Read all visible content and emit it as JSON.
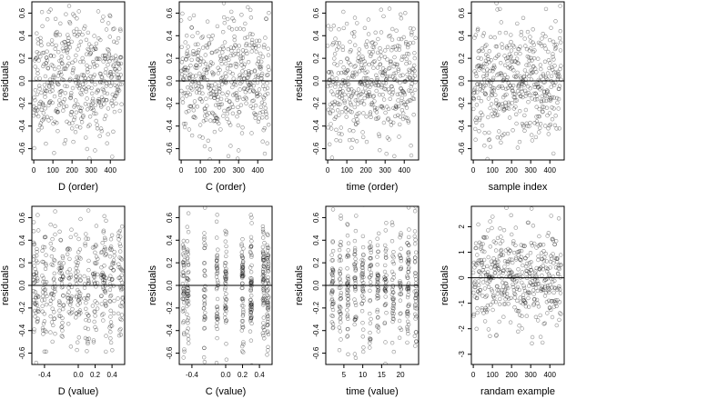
{
  "chart_data": [
    {
      "type": "scatter",
      "xlabel": "D (order)",
      "ylabel": "residuals",
      "xlim": [
        -10,
        475
      ],
      "ylim": [
        -0.7,
        0.7
      ],
      "xticks": [
        {
          "v": 0,
          "label": "0"
        },
        {
          "v": 100,
          "label": "100"
        },
        {
          "v": 200,
          "label": "200"
        },
        {
          "v": 300,
          "label": "300"
        },
        {
          "v": 400,
          "label": "400"
        }
      ],
      "yticks": [
        {
          "v": -0.6,
          "label": "-0.6"
        },
        {
          "v": -0.4,
          "label": "-0.4"
        },
        {
          "v": -0.2,
          "label": "-0.2"
        },
        {
          "v": 0.0,
          "label": "0.0"
        },
        {
          "v": 0.2,
          "label": "0.2"
        },
        {
          "v": 0.4,
          "label": "0.4"
        },
        {
          "v": 0.6,
          "label": "0.6"
        }
      ],
      "hline": 0,
      "gen": {
        "kind": "order",
        "n": 460,
        "sd": 0.27,
        "seed": 11
      }
    },
    {
      "type": "scatter",
      "xlabel": "C (order)",
      "ylabel": "residuals",
      "xlim": [
        -10,
        475
      ],
      "ylim": [
        -0.7,
        0.7
      ],
      "xticks": [
        {
          "v": 0,
          "label": "0"
        },
        {
          "v": 100,
          "label": "100"
        },
        {
          "v": 200,
          "label": "200"
        },
        {
          "v": 300,
          "label": "300"
        },
        {
          "v": 400,
          "label": "400"
        }
      ],
      "yticks": [
        {
          "v": -0.6,
          "label": "-0.6"
        },
        {
          "v": -0.4,
          "label": "-0.4"
        },
        {
          "v": -0.2,
          "label": "-0.2"
        },
        {
          "v": 0.0,
          "label": "0.0"
        },
        {
          "v": 0.2,
          "label": "0.2"
        },
        {
          "v": 0.4,
          "label": "0.4"
        },
        {
          "v": 0.6,
          "label": "0.6"
        }
      ],
      "hline": 0,
      "gen": {
        "kind": "order",
        "n": 460,
        "sd": 0.27,
        "seed": 23
      }
    },
    {
      "type": "scatter",
      "xlabel": "time (order)",
      "ylabel": "residuals",
      "xlim": [
        -10,
        475
      ],
      "ylim": [
        -0.7,
        0.7
      ],
      "xticks": [
        {
          "v": 0,
          "label": "0"
        },
        {
          "v": 100,
          "label": "100"
        },
        {
          "v": 200,
          "label": "200"
        },
        {
          "v": 300,
          "label": "300"
        },
        {
          "v": 400,
          "label": "400"
        }
      ],
      "yticks": [
        {
          "v": -0.6,
          "label": "-0.6"
        },
        {
          "v": -0.4,
          "label": "-0.4"
        },
        {
          "v": -0.2,
          "label": "-0.2"
        },
        {
          "v": 0.0,
          "label": "0.0"
        },
        {
          "v": 0.2,
          "label": "0.2"
        },
        {
          "v": 0.4,
          "label": "0.4"
        },
        {
          "v": 0.6,
          "label": "0.6"
        }
      ],
      "hline": 0,
      "gen": {
        "kind": "order",
        "n": 460,
        "sd": 0.27,
        "seed": 37
      }
    },
    {
      "type": "scatter",
      "xlabel": "sample index",
      "ylabel": "residuals",
      "xlim": [
        -10,
        475
      ],
      "ylim": [
        -0.7,
        0.7
      ],
      "xticks": [
        {
          "v": 0,
          "label": "0"
        },
        {
          "v": 100,
          "label": "100"
        },
        {
          "v": 200,
          "label": "200"
        },
        {
          "v": 300,
          "label": "300"
        },
        {
          "v": 400,
          "label": "400"
        }
      ],
      "yticks": [
        {
          "v": -0.6,
          "label": "-0.6"
        },
        {
          "v": -0.4,
          "label": "-0.4"
        },
        {
          "v": -0.2,
          "label": "-0.2"
        },
        {
          "v": 0.0,
          "label": "0.0"
        },
        {
          "v": 0.2,
          "label": "0.2"
        },
        {
          "v": 0.4,
          "label": "0.4"
        },
        {
          "v": 0.6,
          "label": "0.6"
        }
      ],
      "hline": 0,
      "gen": {
        "kind": "order",
        "n": 460,
        "sd": 0.27,
        "seed": 41
      }
    },
    {
      "type": "scatter",
      "xlabel": "D (value)",
      "ylabel": "residuals",
      "xlim": [
        -0.55,
        0.55
      ],
      "ylim": [
        -0.7,
        0.7
      ],
      "xticks": [
        {
          "v": -0.4,
          "label": "-0.4"
        },
        {
          "v": 0.0,
          "label": "0.0"
        },
        {
          "v": 0.2,
          "label": "0.2"
        },
        {
          "v": 0.4,
          "label": "0.4"
        }
      ],
      "yticks": [
        {
          "v": -0.6,
          "label": "-0.6"
        },
        {
          "v": -0.4,
          "label": "-0.4"
        },
        {
          "v": -0.2,
          "label": "-0.2"
        },
        {
          "v": 0.0,
          "label": "0.0"
        },
        {
          "v": 0.2,
          "label": "0.2"
        },
        {
          "v": 0.4,
          "label": "0.4"
        },
        {
          "v": 0.6,
          "label": "0.6"
        }
      ],
      "hline": 0,
      "gen": {
        "kind": "clusters",
        "n": 460,
        "sd": 0.27,
        "seed": 53,
        "centers": [
          -0.5,
          -0.4,
          -0.3,
          -0.2,
          -0.1,
          0.0,
          0.1,
          0.2,
          0.3,
          0.4,
          0.5
        ],
        "spread": 0.03
      }
    },
    {
      "type": "scatter",
      "xlabel": "C (value)",
      "ylabel": "residuals",
      "xlim": [
        -0.55,
        0.55
      ],
      "ylim": [
        -0.7,
        0.7
      ],
      "xticks": [
        {
          "v": -0.4,
          "label": "-0.4"
        },
        {
          "v": 0.0,
          "label": "0.0"
        },
        {
          "v": 0.2,
          "label": "0.2"
        },
        {
          "v": 0.4,
          "label": "0.4"
        }
      ],
      "yticks": [
        {
          "v": -0.6,
          "label": "-0.6"
        },
        {
          "v": -0.4,
          "label": "-0.4"
        },
        {
          "v": -0.2,
          "label": "-0.2"
        },
        {
          "v": 0.0,
          "label": "0.0"
        },
        {
          "v": 0.2,
          "label": "0.2"
        },
        {
          "v": 0.4,
          "label": "0.4"
        },
        {
          "v": 0.6,
          "label": "0.6"
        }
      ],
      "hline": 0,
      "gen": {
        "kind": "clusters",
        "n": 460,
        "sd": 0.27,
        "seed": 67,
        "centers": [
          -0.5,
          -0.45,
          -0.25,
          -0.1,
          0.0,
          0.2,
          0.3,
          0.45,
          0.5
        ],
        "spread": 0.01
      }
    },
    {
      "type": "scatter",
      "xlabel": "time (value)",
      "ylabel": "residuals",
      "xlim": [
        0.2,
        24.8
      ],
      "ylim": [
        -0.7,
        0.7
      ],
      "xticks": [
        {
          "v": 5,
          "label": "5"
        },
        {
          "v": 10,
          "label": "10"
        },
        {
          "v": 15,
          "label": "15"
        },
        {
          "v": 20,
          "label": "20"
        }
      ],
      "yticks": [
        {
          "v": -0.6,
          "label": "-0.6"
        },
        {
          "v": -0.4,
          "label": "-0.4"
        },
        {
          "v": -0.2,
          "label": "-0.2"
        },
        {
          "v": 0.0,
          "label": "0.0"
        },
        {
          "v": 0.2,
          "label": "0.2"
        },
        {
          "v": 0.4,
          "label": "0.4"
        },
        {
          "v": 0.6,
          "label": "0.6"
        }
      ],
      "hline": 0,
      "gen": {
        "kind": "clusters",
        "n": 460,
        "sd": 0.27,
        "seed": 79,
        "centers": [
          2,
          4,
          6,
          8,
          10,
          12,
          14,
          16,
          18,
          20,
          22,
          24
        ],
        "spread": 0.25
      }
    },
    {
      "type": "scatter",
      "xlabel": "randam example",
      "ylabel": "residuals",
      "xlim": [
        -10,
        475
      ],
      "ylim": [
        -3.4,
        2.8
      ],
      "xticks": [
        {
          "v": 0,
          "label": "0"
        },
        {
          "v": 100,
          "label": "100"
        },
        {
          "v": 200,
          "label": "200"
        },
        {
          "v": 300,
          "label": "300"
        },
        {
          "v": 400,
          "label": "400"
        }
      ],
      "yticks": [
        {
          "v": -3,
          "label": "-3"
        },
        {
          "v": -2,
          "label": "-2"
        },
        {
          "v": -1,
          "label": "-1"
        },
        {
          "v": 0,
          "label": "0"
        },
        {
          "v": 1,
          "label": "1"
        },
        {
          "v": 2,
          "label": "2"
        }
      ],
      "hline": 0,
      "gen": {
        "kind": "order",
        "n": 460,
        "sd": 1.0,
        "seed": 97
      }
    }
  ]
}
